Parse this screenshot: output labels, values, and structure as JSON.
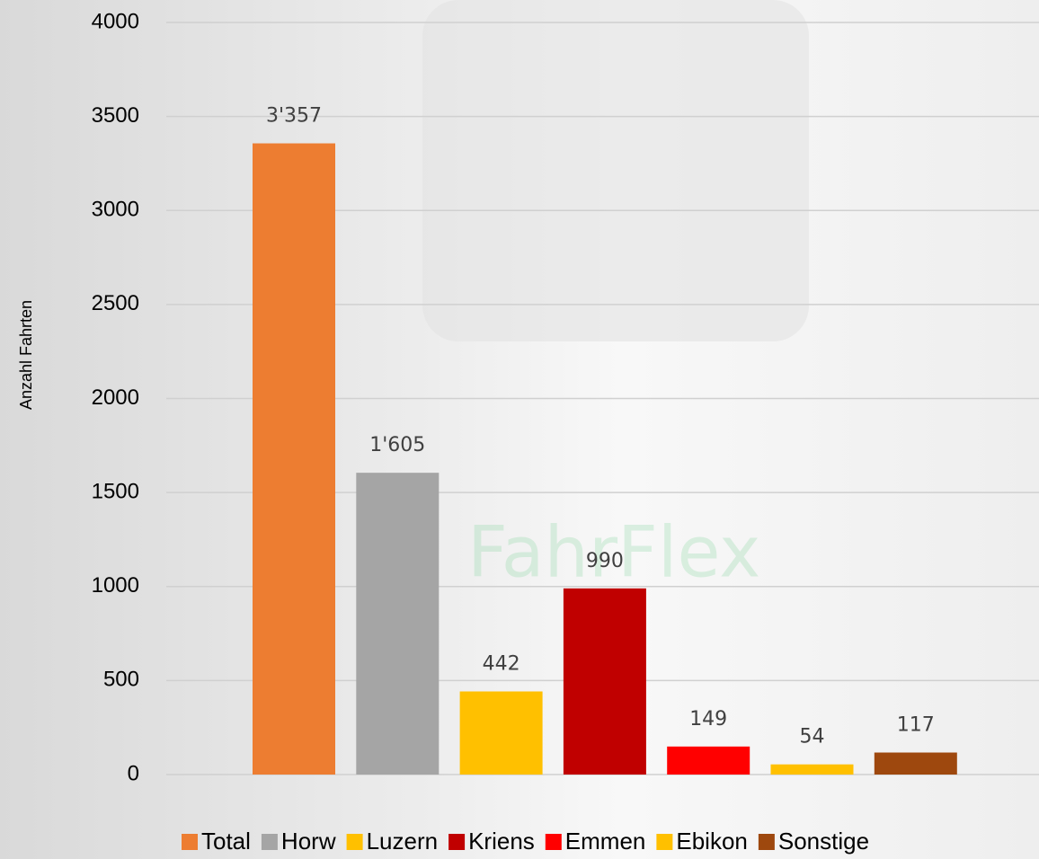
{
  "watermark": "FahrFlex",
  "chart_data": {
    "type": "bar",
    "ylabel": "Anzahl Fahrten",
    "series": [
      {
        "name": "Total",
        "color": "#ED7D31",
        "values": [
          3357
        ],
        "value_labels": [
          "3'357"
        ]
      },
      {
        "name": "Horw",
        "color": "#A5A5A5",
        "values": [
          1605
        ],
        "value_labels": [
          "1'605"
        ]
      },
      {
        "name": "Luzern",
        "color": "#FFC000",
        "values": [
          442
        ]
      },
      {
        "name": "Kriens",
        "color": "#C00000",
        "values": [
          990
        ]
      },
      {
        "name": "Emmen",
        "color": "#FF0000",
        "values": [
          149
        ]
      },
      {
        "name": "Ebikon",
        "color": "#FFC000",
        "values": [
          54
        ]
      },
      {
        "name": "Sonstige",
        "color": "#9E480E",
        "values": [
          117
        ]
      }
    ],
    "ylim": [
      0,
      4000
    ],
    "yticks": [
      0,
      500,
      1000,
      1500,
      2000,
      2500,
      3000,
      3500,
      4000
    ],
    "grid": true,
    "legend": "bottom"
  }
}
